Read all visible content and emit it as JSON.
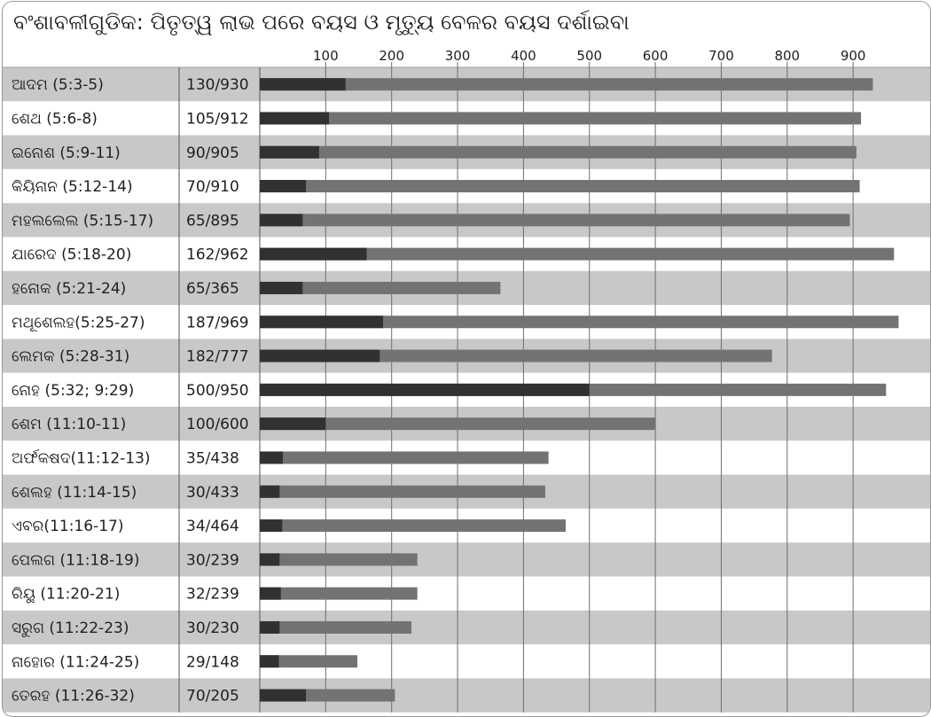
{
  "chart_data": {
    "type": "bar",
    "title": "ବଂଶାବଳୀଗୁଡିକ: ପିତୃତ୍ୱ ଲାଭ ପରେ ବୟସ ଓ ମୃତ୍ୟୁ ବେଳର ବୟସ ଦର୍ଶାଇବା",
    "xlim": [
      0,
      980
    ],
    "ticks": [
      100,
      200,
      300,
      400,
      500,
      600,
      700,
      800,
      900
    ],
    "tick_labels": [
      "100",
      "200",
      "300",
      "400",
      "500",
      "600",
      "700",
      "800",
      "900"
    ],
    "grid": true,
    "colors": {
      "fatherhood": "#333031",
      "death": "#737373",
      "row_odd": "#c8c8c8",
      "row_even": "#ffffff"
    },
    "rows": [
      {
        "label": "ଆଦମ  (5:3-5)",
        "value_text": "130/930",
        "fatherhood": 130,
        "death": 930
      },
      {
        "label": "ଶେଥ  (5:6-8)",
        "value_text": "105/912",
        "fatherhood": 105,
        "death": 912
      },
      {
        "label": "ଇନୋଶ (5:9-11)",
        "value_text": "90/905",
        "fatherhood": 90,
        "death": 905
      },
      {
        "label": "କିୟିନାନ (5:12-14)",
        "value_text": "70/910",
        "fatherhood": 70,
        "death": 910
      },
      {
        "label": "ମହଲଲେଲ (5:15-17)",
        "value_text": "65/895",
        "fatherhood": 65,
        "death": 895
      },
      {
        "label": "ଯାରେଦ (5:18-20)",
        "value_text": "162/962",
        "fatherhood": 162,
        "death": 962
      },
      {
        "label": "ହନୋକ (5:21-24)",
        "value_text": "65/365",
        "fatherhood": 65,
        "death": 365
      },
      {
        "label": "ମଥୂଶେଲହ(5:25-27)",
        "value_text": "187/969",
        "fatherhood": 187,
        "death": 969
      },
      {
        "label": "ଲେମକ (5:28-31)",
        "value_text": "182/777",
        "fatherhood": 182,
        "death": 777
      },
      {
        "label": "ନୋହ (5:32; 9:29)",
        "value_text": "500/950",
        "fatherhood": 500,
        "death": 950
      },
      {
        "label": "ଶେମ (11:10-11)",
        "value_text": "100/600",
        "fatherhood": 100,
        "death": 600
      },
      {
        "label": "ଅର୍ଫକଷଦ(11:12-13)",
        "value_text": "35/438",
        "fatherhood": 35,
        "death": 438
      },
      {
        "label": "ଶେଲହ (11:14-15)",
        "value_text": "30/433",
        "fatherhood": 30,
        "death": 433
      },
      {
        "label": "ଏବର(11:16-17)",
        "value_text": "34/464",
        "fatherhood": 34,
        "death": 464
      },
      {
        "label": "ପେଲଗ (11:18-19)",
        "value_text": "30/239",
        "fatherhood": 30,
        "death": 239
      },
      {
        "label": "ରିୟୁ (11:20-21)",
        "value_text": "32/239",
        "fatherhood": 32,
        "death": 239
      },
      {
        "label": "ସରୁଗ (11:22-23)",
        "value_text": "30/230",
        "fatherhood": 30,
        "death": 230
      },
      {
        "label": "ନାହୋର (11:24-25)",
        "value_text": "29/148",
        "fatherhood": 29,
        "death": 148
      },
      {
        "label": "ତେରହ (11:26-32)",
        "value_text": "70/205",
        "fatherhood": 70,
        "death": 205
      }
    ]
  }
}
